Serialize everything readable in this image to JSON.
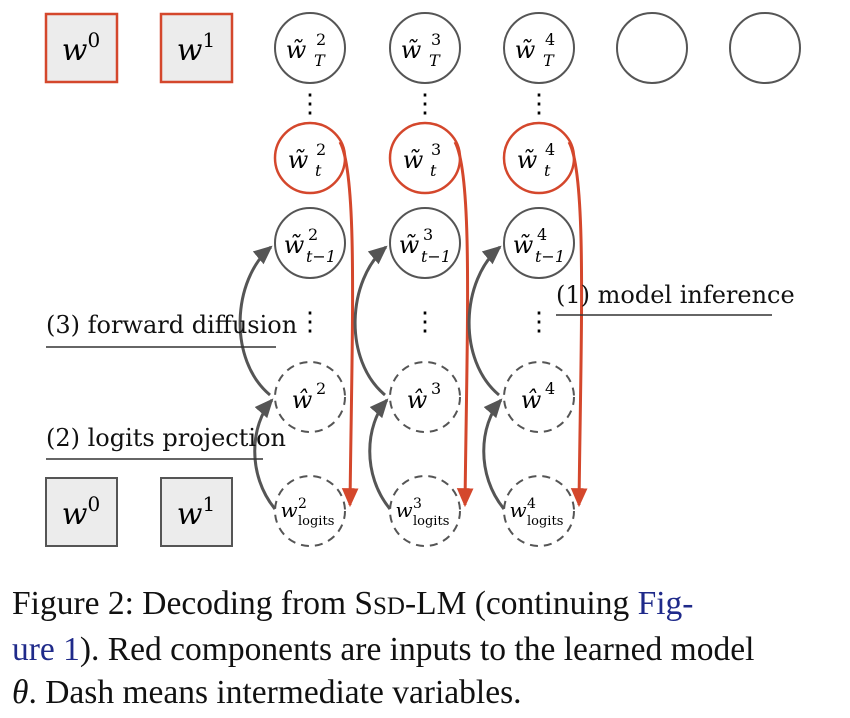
{
  "colors": {
    "red": "#d4472c",
    "gray_stroke": "#555555",
    "box_fill": "#ececec",
    "text": "#111111",
    "link": "#1f2a8a"
  },
  "diagram": {
    "top_boxes": [
      {
        "base": "w",
        "sup": "0"
      },
      {
        "base": "w",
        "sup": "1"
      }
    ],
    "bottom_boxes": [
      {
        "base": "w",
        "sup": "0"
      },
      {
        "base": "w",
        "sup": "1"
      }
    ],
    "columns": [
      {
        "top": {
          "base": "w̃",
          "sup": "2",
          "sub": "T"
        },
        "t": {
          "base": "w̃",
          "sup": "2",
          "sub": "t"
        },
        "tm1": {
          "base": "w̃",
          "sup": "2",
          "sub": "t−1"
        },
        "hat": {
          "base": "ŵ",
          "sup": "2"
        },
        "logits": {
          "base": "w",
          "sup": "2",
          "sub": "logits"
        }
      },
      {
        "top": {
          "base": "w̃",
          "sup": "3",
          "sub": "T"
        },
        "t": {
          "base": "w̃",
          "sup": "3",
          "sub": "t"
        },
        "tm1": {
          "base": "w̃",
          "sup": "3",
          "sub": "t−1"
        },
        "hat": {
          "base": "ŵ",
          "sup": "3"
        },
        "logits": {
          "base": "w",
          "sup": "3",
          "sub": "logits"
        }
      },
      {
        "top": {
          "base": "w̃",
          "sup": "4",
          "sub": "T"
        },
        "t": {
          "base": "w̃",
          "sup": "4",
          "sub": "t"
        },
        "tm1": {
          "base": "w̃",
          "sup": "4",
          "sub": "t−1"
        },
        "hat": {
          "base": "ŵ",
          "sup": "4"
        },
        "logits": {
          "base": "w",
          "sup": "4",
          "sub": "logits"
        }
      }
    ],
    "ellipsis": "⋮",
    "labels": {
      "model_inference": "(1) model inference",
      "logits_projection": "(2) logits projection",
      "forward_diffusion": "(3) forward diffusion"
    }
  },
  "caption": {
    "prefix": "Figure 2:  Decoding from ",
    "model_s": "S",
    "model_sd": "SD",
    "model_suffix": "-LM (continuing ",
    "link_text_1": "Fig-",
    "link_text_2": "ure 1",
    "after_link": "). Red components are inputs to the learned model",
    "theta": "θ",
    "final": ". Dash means intermediate variables."
  }
}
